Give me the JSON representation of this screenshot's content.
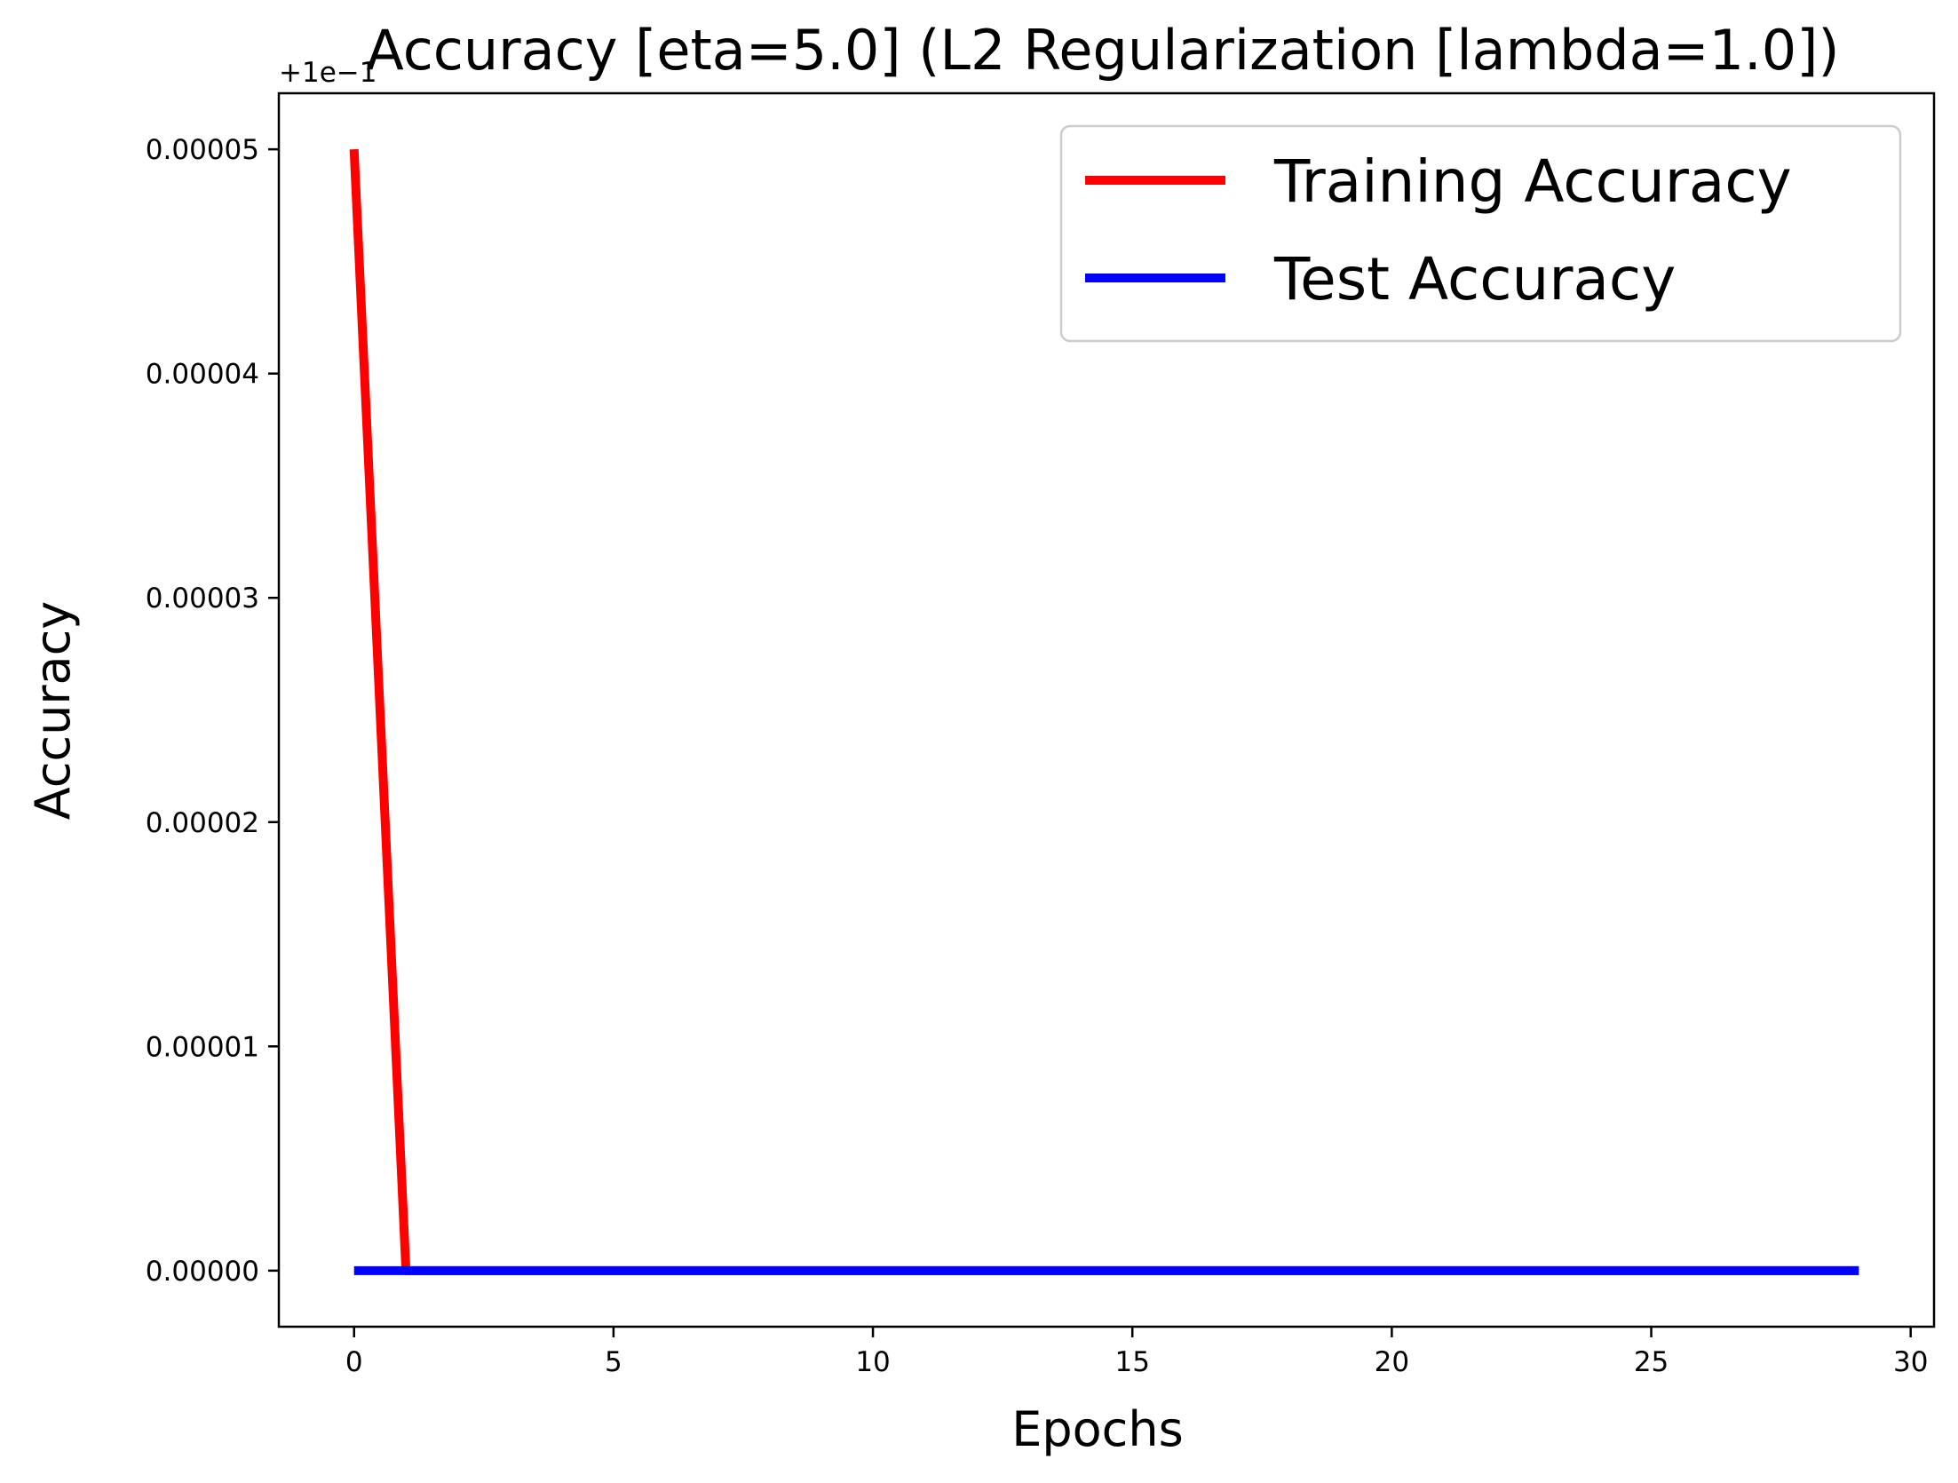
{
  "chart_data": {
    "type": "line",
    "title": "Accuracy [eta=5.0] (L2 Regularization [lambda=1.0])",
    "xlabel": "Epochs",
    "ylabel": "Accuracy",
    "y_offset_text": "+1e−1",
    "xlim": [
      -1.45,
      30.45
    ],
    "ylim": [
      -2.5e-06,
      5.25e-05
    ],
    "x_ticks": [
      0,
      5,
      10,
      15,
      20,
      25,
      30
    ],
    "x_tick_labels": [
      "0",
      "5",
      "10",
      "15",
      "20",
      "25",
      "30"
    ],
    "y_ticks": [
      0.0,
      1e-05,
      2e-05,
      3e-05,
      4e-05,
      5e-05
    ],
    "y_tick_labels": [
      "0.00000",
      "0.00001",
      "0.00002",
      "0.00003",
      "0.00004",
      "0.00005"
    ],
    "grid": false,
    "legend_position": "top-right",
    "series": [
      {
        "name": "Training Accuracy",
        "color": "#ff0000",
        "x": [
          0,
          1,
          2,
          3,
          4,
          5,
          6,
          7,
          8,
          9,
          10,
          11,
          12,
          13,
          14,
          15,
          16,
          17,
          18,
          19,
          20,
          21,
          22,
          23,
          24,
          25,
          26,
          27,
          28,
          29
        ],
        "values": [
          5e-05,
          0,
          0,
          0,
          0,
          0,
          0,
          0,
          0,
          0,
          0,
          0,
          0,
          0,
          0,
          0,
          0,
          0,
          0,
          0,
          0,
          0,
          0,
          0,
          0,
          0,
          0,
          0,
          0,
          0
        ]
      },
      {
        "name": "Test Accuracy",
        "color": "#0000ff",
        "x": [
          0,
          1,
          2,
          3,
          4,
          5,
          6,
          7,
          8,
          9,
          10,
          11,
          12,
          13,
          14,
          15,
          16,
          17,
          18,
          19,
          20,
          21,
          22,
          23,
          24,
          25,
          26,
          27,
          28,
          29
        ],
        "values": [
          0,
          0,
          0,
          0,
          0,
          0,
          0,
          0,
          0,
          0,
          0,
          0,
          0,
          0,
          0,
          0,
          0,
          0,
          0,
          0,
          0,
          0,
          0,
          0,
          0,
          0,
          0,
          0,
          0,
          0
        ]
      }
    ]
  }
}
